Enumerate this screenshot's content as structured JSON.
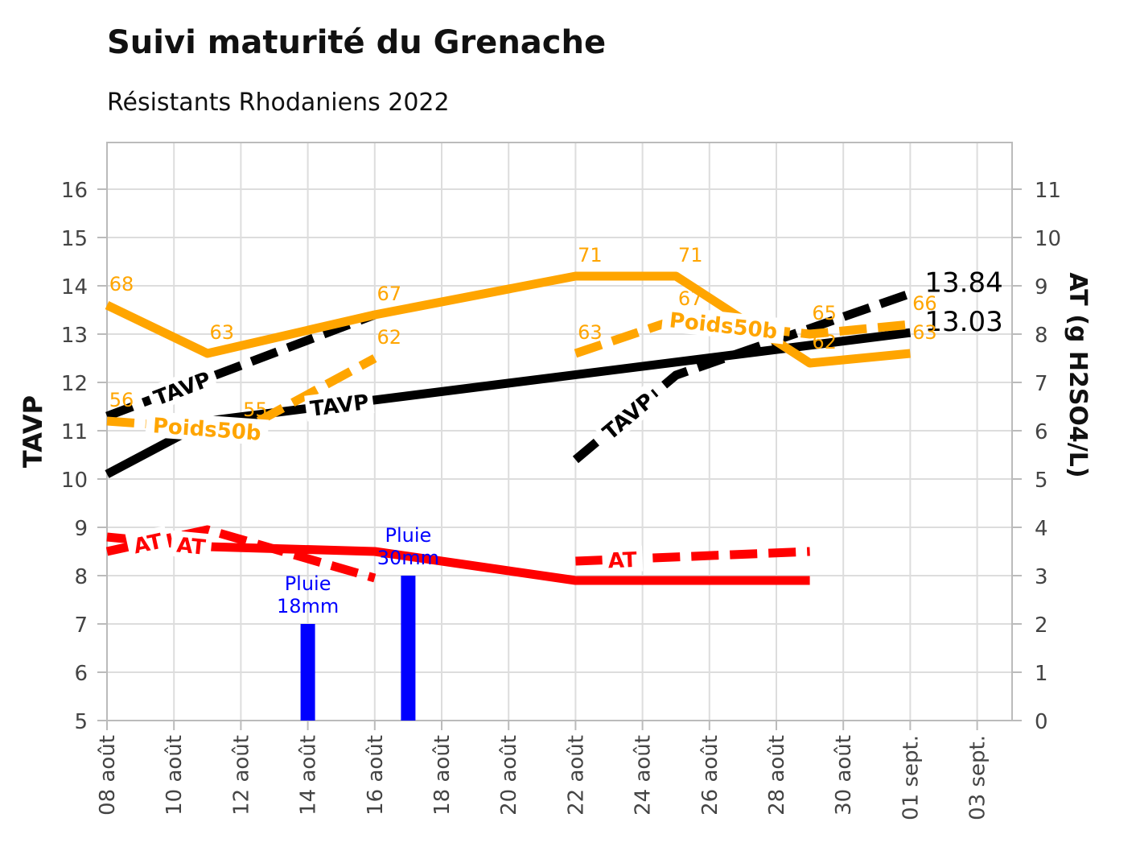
{
  "chart_data": {
    "type": "line",
    "title": "Suivi maturité du Grenache",
    "subtitle": "Résistants Rhodaniens 2022",
    "ylabel": "TAVP",
    "y2label": "AT (g H2SO4/L)",
    "ylim": [
      5,
      17
    ],
    "y2lim": [
      0,
      12
    ],
    "yticks": [
      5,
      6,
      7,
      8,
      9,
      10,
      11,
      12,
      13,
      14,
      15,
      16
    ],
    "y2ticks": [
      0,
      1,
      2,
      3,
      4,
      5,
      6,
      7,
      8,
      9,
      10,
      11
    ],
    "xlim": [
      "2022-08-08",
      "2022-09-04"
    ],
    "xticks": [
      {
        "date": "2022-08-08",
        "label": "08 août"
      },
      {
        "date": "2022-08-10",
        "label": "10 août"
      },
      {
        "date": "2022-08-12",
        "label": "12 août"
      },
      {
        "date": "2022-08-14",
        "label": "14 août"
      },
      {
        "date": "2022-08-16",
        "label": "16 août"
      },
      {
        "date": "2022-08-18",
        "label": "18 août"
      },
      {
        "date": "2022-08-20",
        "label": "20 août"
      },
      {
        "date": "2022-08-22",
        "label": "22 août"
      },
      {
        "date": "2022-08-24",
        "label": "24 août"
      },
      {
        "date": "2022-08-26",
        "label": "26 août"
      },
      {
        "date": "2022-08-28",
        "label": "28 août"
      },
      {
        "date": "2022-08-30",
        "label": "30 août"
      },
      {
        "date": "2022-09-01",
        "label": "01 sept."
      },
      {
        "date": "2022-09-03",
        "label": "03 sept."
      }
    ],
    "grid": true,
    "colors": {
      "tavp": "#000000",
      "poids": "#FFA500",
      "at": "#FF0000",
      "pluie": "#0000FF",
      "grid": "#DDDDDD",
      "axis": "#BBBBBB"
    },
    "series": [
      {
        "name": "TAVP",
        "kind": "tavp",
        "style": "solid",
        "points": [
          {
            "x": "2022-08-08",
            "y": 10.1
          },
          {
            "x": "2022-08-11",
            "y": 11.2
          },
          {
            "x": "2022-09-01",
            "y": 13.03
          }
        ],
        "end_label": "13.03",
        "labels": [
          {
            "at": 0.3,
            "text": "TAVP"
          }
        ]
      },
      {
        "name": "TAVP",
        "kind": "tavp",
        "style": "dashed",
        "points": [
          {
            "x": "2022-08-08",
            "y": 11.3
          },
          {
            "x": "2022-08-16",
            "y": 13.4
          }
        ],
        "labels": [
          {
            "at": 0.28,
            "text": "TAVP"
          }
        ]
      },
      {
        "name": "TAVP",
        "kind": "tavp",
        "style": "dashed",
        "points": [
          {
            "x": "2022-08-22",
            "y": 10.4
          },
          {
            "x": "2022-08-25",
            "y": 12.15
          },
          {
            "x": "2022-09-01",
            "y": 13.84
          }
        ],
        "end_label": "13.84",
        "labels": [
          {
            "at": 0.18,
            "text": "TAVP"
          }
        ]
      },
      {
        "name": "Poids50b",
        "kind": "poids",
        "style": "solid",
        "points": [
          {
            "x": "2022-08-08",
            "y": 13.6
          },
          {
            "x": "2022-08-11",
            "y": 12.6
          },
          {
            "x": "2022-08-16",
            "y": 13.4
          },
          {
            "x": "2022-08-22",
            "y": 14.2
          },
          {
            "x": "2022-08-25",
            "y": 14.2
          },
          {
            "x": "2022-08-29",
            "y": 12.4
          },
          {
            "x": "2022-09-01",
            "y": 12.6
          }
        ],
        "point_labels": [
          "68",
          "63",
          "67",
          "71",
          "71",
          "62",
          "63"
        ]
      },
      {
        "name": "Poids50b",
        "kind": "poids",
        "style": "dashed",
        "points": [
          {
            "x": "2022-08-08",
            "y": 11.2
          },
          {
            "x": "2022-08-12",
            "y": 11.0
          },
          {
            "x": "2022-08-16",
            "y": 12.5
          }
        ],
        "point_labels": [
          "56",
          "55",
          "62"
        ],
        "labels": [
          {
            "at": 0.35,
            "text": "Poids50b"
          }
        ]
      },
      {
        "name": "Poids50b",
        "kind": "poids",
        "style": "dashed",
        "points": [
          {
            "x": "2022-08-22",
            "y": 12.6
          },
          {
            "x": "2022-08-25",
            "y": 13.3
          },
          {
            "x": "2022-08-29",
            "y": 13.0
          },
          {
            "x": "2022-09-01",
            "y": 13.2
          }
        ],
        "point_labels": [
          "63",
          "67",
          "65",
          "66"
        ],
        "labels": [
          {
            "at": 0.45,
            "text": "Poids50b"
          }
        ]
      },
      {
        "name": "AT",
        "kind": "at",
        "style": "solid",
        "points": [
          {
            "x": "2022-08-08",
            "y": 8.8
          },
          {
            "x": "2022-08-11",
            "y": 8.6
          },
          {
            "x": "2022-08-16",
            "y": 8.5
          },
          {
            "x": "2022-08-22",
            "y": 7.9
          },
          {
            "x": "2022-08-29",
            "y": 7.9
          }
        ],
        "labels": [
          {
            "at": 0.12,
            "text": "AT"
          }
        ]
      },
      {
        "name": "AT",
        "kind": "at",
        "style": "dashed",
        "points": [
          {
            "x": "2022-08-08",
            "y": 8.5
          },
          {
            "x": "2022-08-11",
            "y": 8.95
          },
          {
            "x": "2022-08-16",
            "y": 7.95
          }
        ],
        "labels": [
          {
            "at": 0.15,
            "text": "AT"
          }
        ]
      },
      {
        "name": "AT",
        "kind": "at",
        "style": "dashed",
        "points": [
          {
            "x": "2022-08-22",
            "y": 8.3
          },
          {
            "x": "2022-08-29",
            "y": 8.5
          }
        ],
        "labels": [
          {
            "at": 0.2,
            "text": "AT"
          }
        ]
      }
    ],
    "bars": [
      {
        "x": "2022-08-14",
        "y": 7.0,
        "label": [
          "Pluie",
          "18mm"
        ]
      },
      {
        "x": "2022-08-17",
        "y": 8.0,
        "label": [
          "Pluie",
          "30mm"
        ]
      }
    ]
  }
}
